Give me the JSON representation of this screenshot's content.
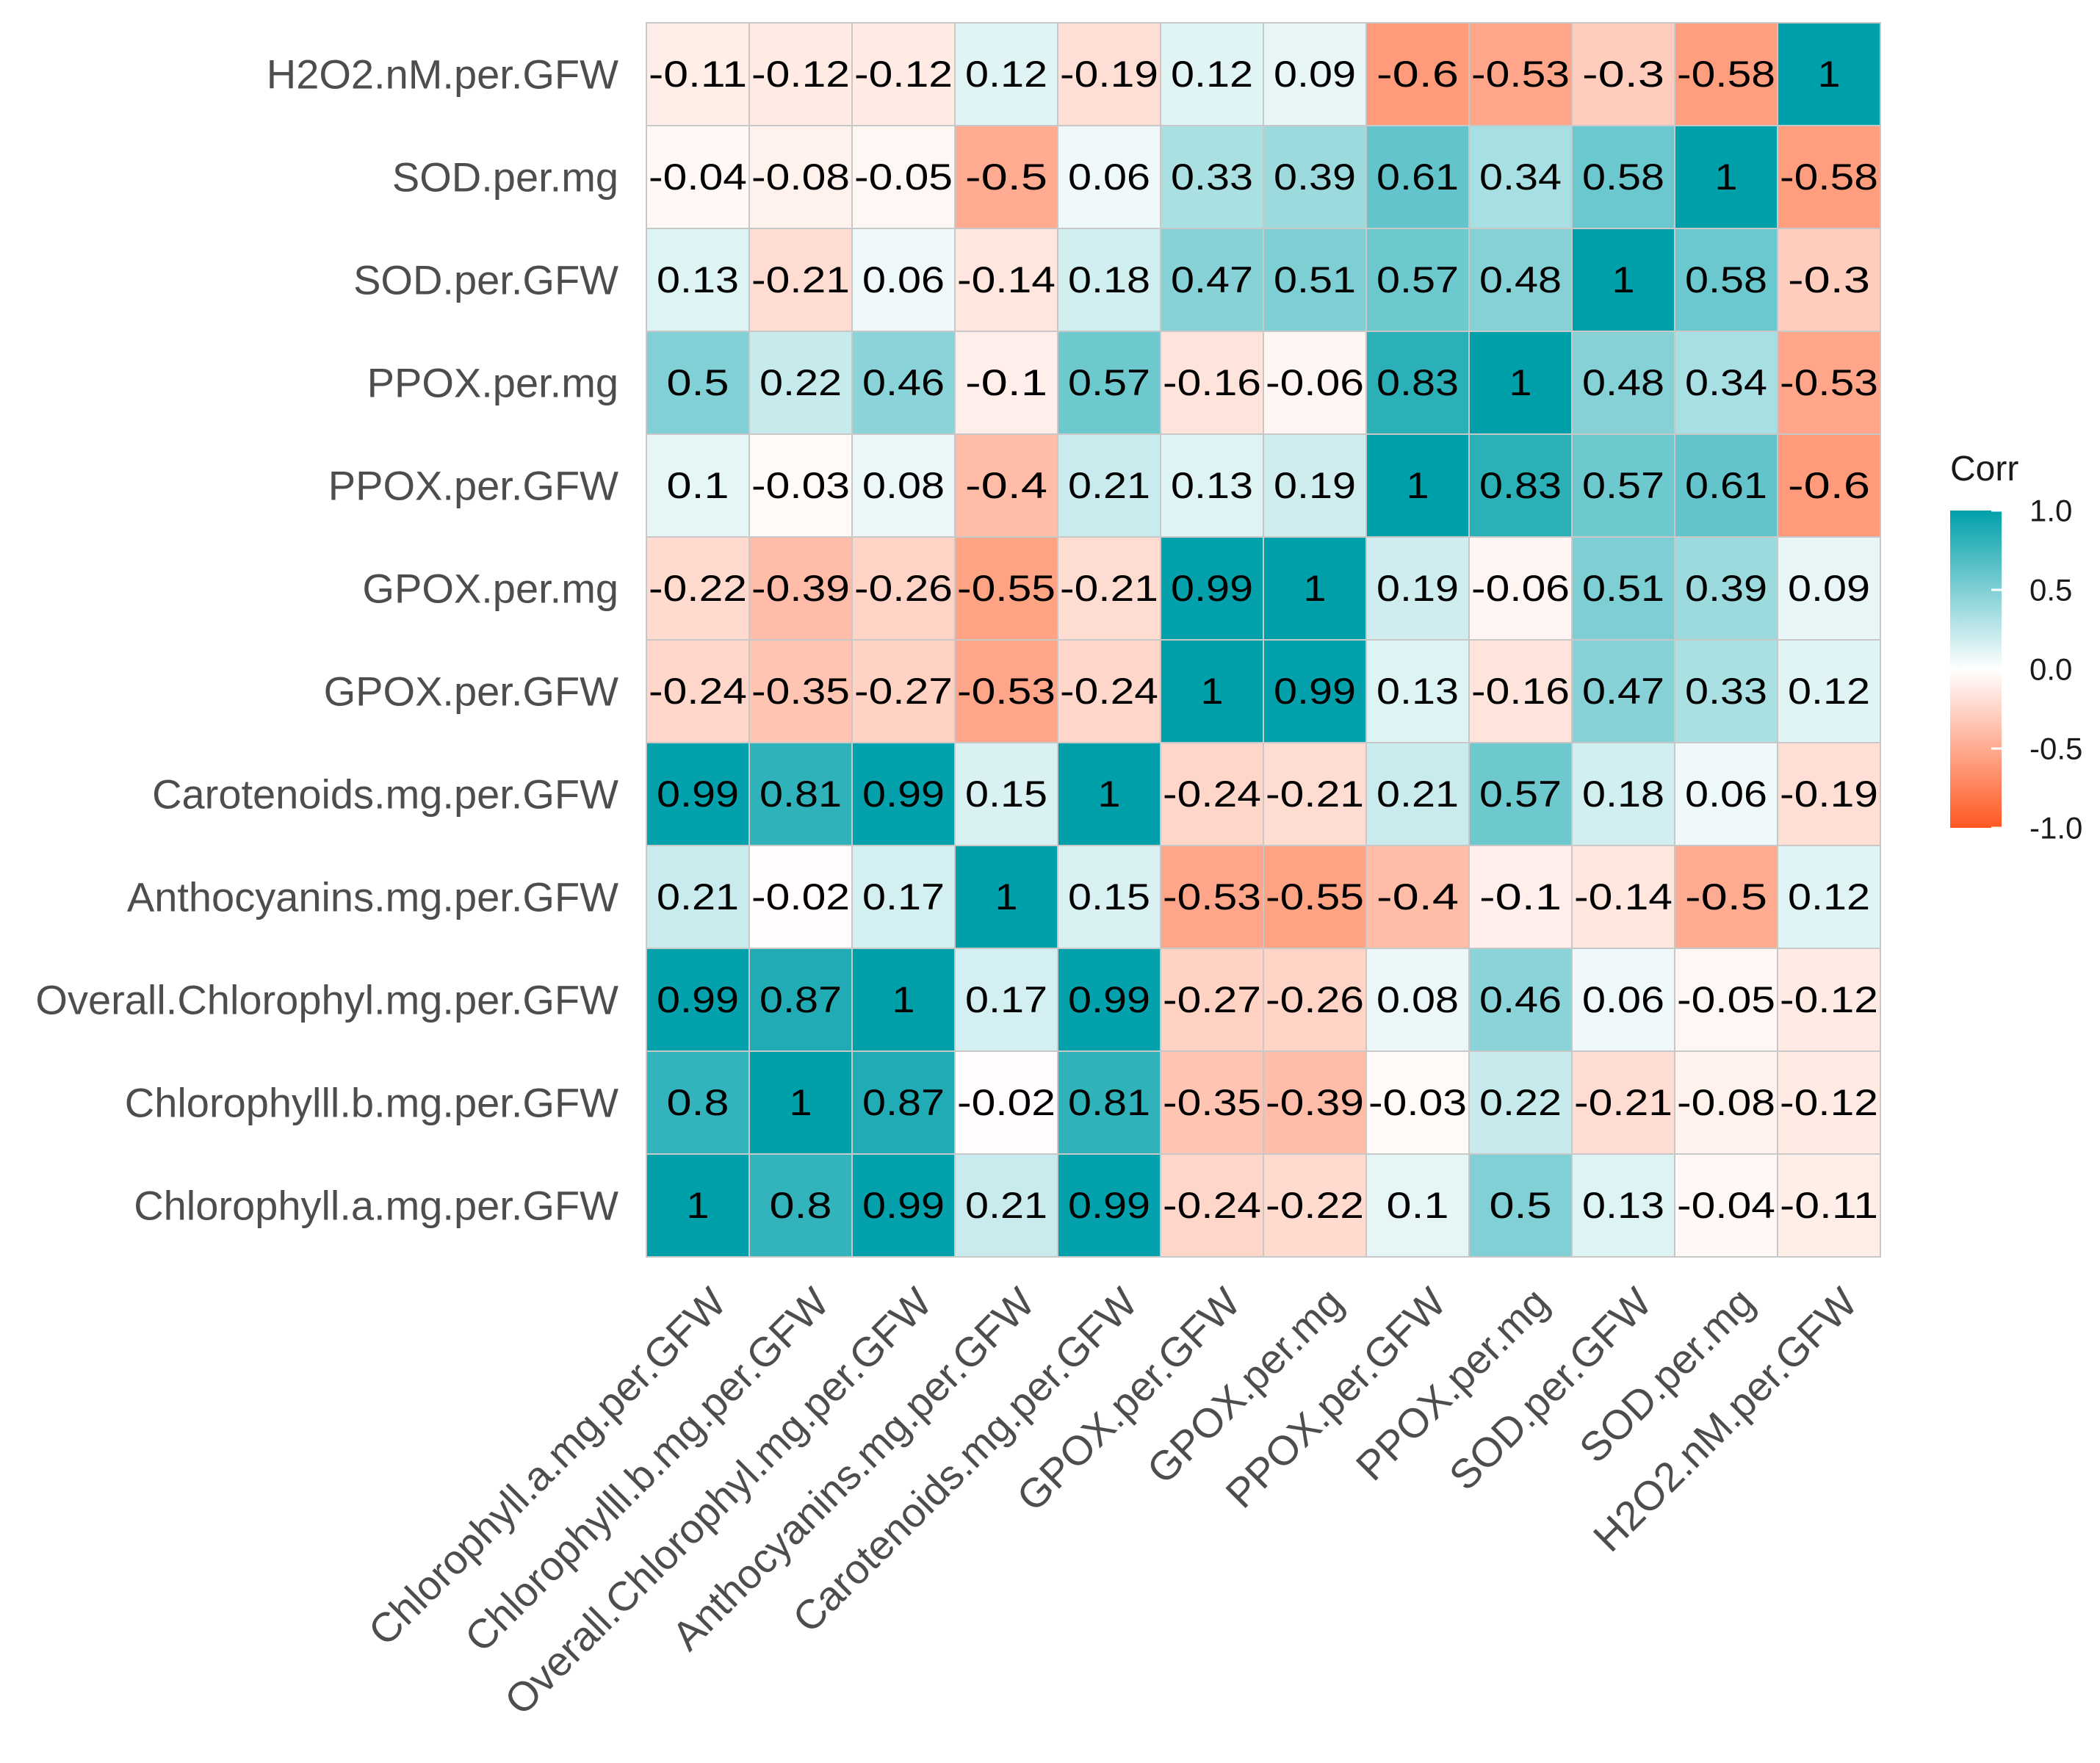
{
  "chart_data": {
    "type": "heatmap",
    "title": "",
    "xlabel": "",
    "ylabel": "",
    "variables": [
      "Chlorophyll.a.mg.per.GFW",
      "Chlorophylll.b.mg.per.GFW",
      "Overall.Chlorophyl.mg.per.GFW",
      "Anthocyanins.mg.per.GFW",
      "Carotenoids.mg.per.GFW",
      "GPOX.per.GFW",
      "GPOX.per.mg",
      "PPOX.per.GFW",
      "PPOX.per.mg",
      "SOD.per.GFW",
      "SOD.per.mg",
      "H2O2.nM.per.GFW"
    ],
    "matrix": [
      [
        1,
        0.8,
        0.99,
        0.21,
        0.99,
        -0.24,
        -0.22,
        0.1,
        0.5,
        0.13,
        -0.04,
        -0.11
      ],
      [
        0.8,
        1,
        0.87,
        -0.02,
        0.81,
        -0.35,
        -0.39,
        -0.03,
        0.22,
        -0.21,
        -0.08,
        -0.12
      ],
      [
        0.99,
        0.87,
        1,
        0.17,
        0.99,
        -0.27,
        -0.26,
        0.08,
        0.46,
        0.06,
        -0.05,
        -0.12
      ],
      [
        0.21,
        -0.02,
        0.17,
        1,
        0.15,
        -0.53,
        -0.55,
        -0.4,
        -0.1,
        -0.14,
        -0.5,
        0.12
      ],
      [
        0.99,
        0.81,
        0.99,
        0.15,
        1,
        -0.24,
        -0.21,
        0.21,
        0.57,
        0.18,
        0.06,
        -0.19
      ],
      [
        -0.24,
        -0.35,
        -0.27,
        -0.53,
        -0.24,
        1,
        0.99,
        0.13,
        -0.16,
        0.47,
        0.33,
        0.12
      ],
      [
        -0.22,
        -0.39,
        -0.26,
        -0.55,
        -0.21,
        0.99,
        1,
        0.19,
        -0.06,
        0.51,
        0.39,
        0.09
      ],
      [
        0.1,
        -0.03,
        0.08,
        -0.4,
        0.21,
        0.13,
        0.19,
        1,
        0.83,
        0.57,
        0.61,
        -0.6
      ],
      [
        0.5,
        0.22,
        0.46,
        -0.1,
        0.57,
        -0.16,
        -0.06,
        0.83,
        1,
        0.48,
        0.34,
        -0.53
      ],
      [
        0.13,
        -0.21,
        0.06,
        -0.14,
        0.18,
        0.47,
        0.51,
        0.57,
        0.48,
        1,
        0.58,
        -0.3
      ],
      [
        -0.04,
        -0.08,
        -0.05,
        -0.5,
        0.06,
        0.33,
        0.39,
        0.61,
        0.34,
        0.58,
        1,
        -0.58
      ],
      [
        -0.11,
        -0.12,
        -0.12,
        0.12,
        -0.19,
        0.12,
        0.09,
        -0.6,
        -0.53,
        -0.3,
        -0.58,
        1
      ]
    ],
    "value_range": [
      -1,
      1
    ],
    "legend": {
      "title": "Corr",
      "ticks": [
        "1.0",
        "0.5",
        "0.0",
        "-0.5",
        "-1.0"
      ],
      "tick_values": [
        1,
        0.5,
        0,
        -0.5,
        -1
      ],
      "placement": "right"
    },
    "colors": {
      "high": "#00a0aa",
      "mid": "#ffffff",
      "low": "#ff5722",
      "cell_border": "#c8c8c8"
    }
  }
}
